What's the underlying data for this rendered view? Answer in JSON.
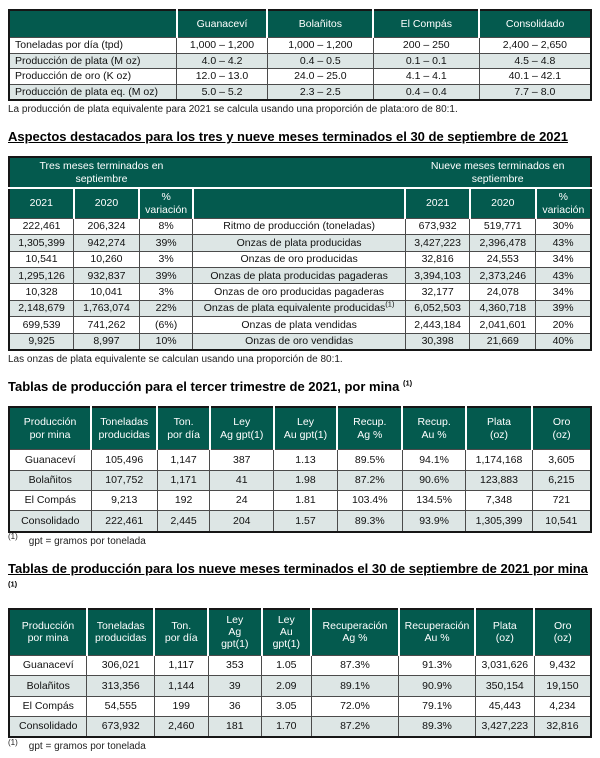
{
  "colors": {
    "header_teal": "#045a4e",
    "row_shade": "#dde6e5"
  },
  "guidance": {
    "columns": [
      "Guanaceví",
      "Bolañitos",
      "El Compás",
      "Consolidado"
    ],
    "rows": [
      {
        "label": "Toneladas por día (tpd)",
        "values": [
          "1,000 – 1,200",
          "1,000 – 1,200",
          "200 – 250",
          "2,400 – 2,650"
        ]
      },
      {
        "label": "Producción de plata (M oz)",
        "values": [
          "4.0 – 4.2",
          "0.4 – 0.5",
          "0.1 – 0.1",
          "4.5 – 4.8"
        ]
      },
      {
        "label": "Producción de oro (K oz)",
        "values": [
          "12.0 – 13.0",
          "24.0 – 25.0",
          "4.1 – 4.1",
          "40.1 – 42.1"
        ]
      },
      {
        "label": "Producción de plata eq. (M oz)",
        "values": [
          "5.0 – 5.2",
          "2.3 – 2.5",
          "0.4 – 0.4",
          "7.7 – 8.0"
        ]
      }
    ],
    "footnote": "La producción de plata equivalente para 2021 se calcula usando una proporción de plata:oro de 80:1."
  },
  "highlights": {
    "heading": "Aspectos destacados para los tres y nueve meses terminados el 30 de septiembre de 2021",
    "period_left": "Tres meses terminados en\nseptiembre",
    "period_right": "Nueve meses terminados en\nseptiembre",
    "subcolumns": [
      "2021",
      "2020",
      "% variación"
    ],
    "rows": [
      {
        "left": [
          "222,461",
          "206,324",
          "8%"
        ],
        "metric": "Ritmo de producción (toneladas)",
        "metric_sup": "",
        "right": [
          "673,932",
          "519,771",
          "30%"
        ]
      },
      {
        "left": [
          "1,305,399",
          "942,274",
          "39%"
        ],
        "metric": "Onzas de plata producidas",
        "metric_sup": "",
        "right": [
          "3,427,223",
          "2,396,478",
          "43%"
        ]
      },
      {
        "left": [
          "10,541",
          "10,260",
          "3%"
        ],
        "metric": "Onzas de oro producidas",
        "metric_sup": "",
        "right": [
          "32,816",
          "24,553",
          "34%"
        ]
      },
      {
        "left": [
          "1,295,126",
          "932,837",
          "39%"
        ],
        "metric": "Onzas de plata producidas pagaderas",
        "metric_sup": "",
        "right": [
          "3,394,103",
          "2,373,246",
          "43%"
        ]
      },
      {
        "left": [
          "10,328",
          "10,041",
          "3%"
        ],
        "metric": "Onzas de oro producidas pagaderas",
        "metric_sup": "",
        "right": [
          "32,177",
          "24,078",
          "34%"
        ]
      },
      {
        "left": [
          "2,148,679",
          "1,763,074",
          "22%"
        ],
        "metric": "Onzas de plata equivalente producidas",
        "metric_sup": "(1)",
        "right": [
          "6,052,503",
          "4,360,718",
          "39%"
        ]
      },
      {
        "left": [
          "699,539",
          "741,262",
          "(6%)"
        ],
        "metric": "Onzas de plata vendidas",
        "metric_sup": "",
        "right": [
          "2,443,184",
          "2,041,601",
          "20%"
        ]
      },
      {
        "left": [
          "9,925",
          "8,997",
          "10%"
        ],
        "metric": "Onzas de oro vendidas",
        "metric_sup": "",
        "right": [
          "30,398",
          "21,669",
          "40%"
        ]
      }
    ],
    "footnote": "Las onzas de plata equivalente se calculan usando una proporción de 80:1."
  },
  "q3_production": {
    "heading": "Tablas de producción para el tercer trimestre de 2021, por mina",
    "heading_sup": "(1)",
    "columns": [
      "Producción\npor mina",
      "Toneladas\nproducidas",
      "Ton.\npor día",
      "Ley\nAg gpt(1)",
      "Ley\nAu gpt(1)",
      "Recup.\nAg %",
      "Recup.\nAu %",
      "Plata\n(oz)",
      "Oro\n(oz)"
    ],
    "rows": [
      [
        "Guanaceví",
        "105,496",
        "1,147",
        "387",
        "1.13",
        "89.5%",
        "94.1%",
        "1,174,168",
        "3,605"
      ],
      [
        "Bolañitos",
        "107,752",
        "1,171",
        "41",
        "1.98",
        "87.2%",
        "90.6%",
        "123,883",
        "6,215"
      ],
      [
        "El Compás",
        "9,213",
        "192",
        "24",
        "1.81",
        "103.4%",
        "134.5%",
        "7,348",
        "721"
      ],
      [
        "Consolidado",
        "222,461",
        "2,445",
        "204",
        "1.57",
        "89.3%",
        "93.9%",
        "1,305,399",
        "10,541"
      ]
    ],
    "footnote_sup": "(1)",
    "footnote": "gpt = gramos por tonelada"
  },
  "ytd_production": {
    "heading": "Tablas de producción para los nueve meses terminados el 30 de septiembre de 2021 por mina",
    "heading_sup": "(1)",
    "columns": [
      "Producción\npor mina",
      "Toneladas\nproducidas",
      "Ton.\npor día",
      "Ley\nAg\ngpt(1)",
      "Ley\nAu\ngpt(1)",
      "Recuperación\nAg %",
      "Recuperación\nAu %",
      "Plata\n(oz)",
      "Oro\n(oz)"
    ],
    "rows": [
      [
        "Guanaceví",
        "306,021",
        "1,117",
        "353",
        "1.05",
        "87.3%",
        "91.3%",
        "3,031,626",
        "9,432"
      ],
      [
        "Bolañitos",
        "313,356",
        "1,144",
        "39",
        "2.09",
        "89.1%",
        "90.9%",
        "350,154",
        "19,150"
      ],
      [
        "El Compás",
        "54,555",
        "199",
        "36",
        "3.05",
        "72.0%",
        "79.1%",
        "45,443",
        "4,234"
      ],
      [
        "Consolidado",
        "673,932",
        "2,460",
        "181",
        "1.70",
        "87.2%",
        "89.3%",
        "3,427,223",
        "32,816"
      ]
    ],
    "footnote_sup": "(1)",
    "footnote": "gpt = gramos por tonelada"
  }
}
